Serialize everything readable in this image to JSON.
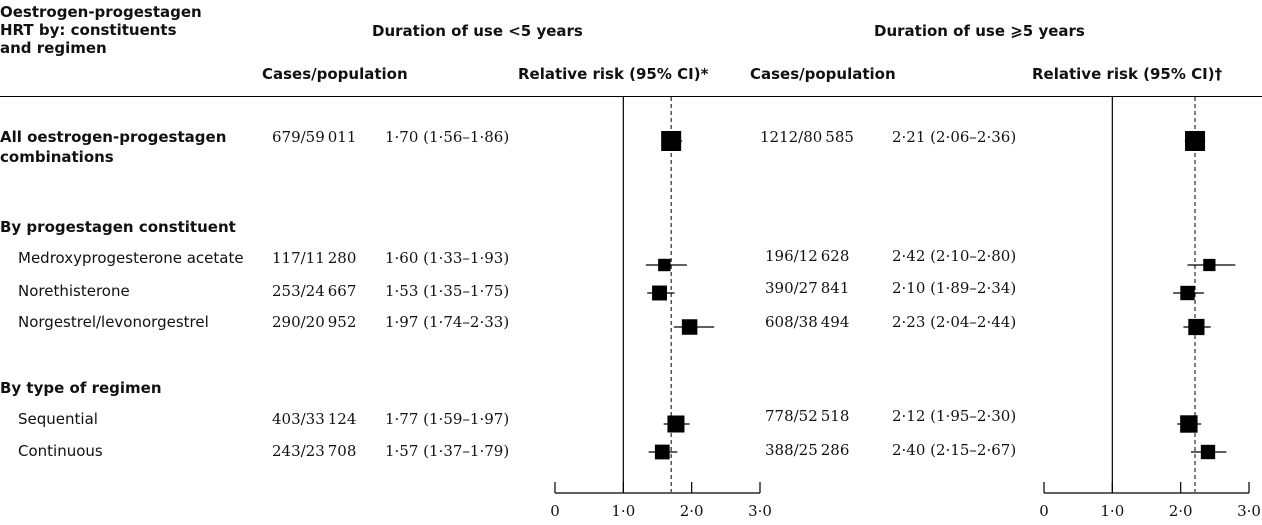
{
  "header": {
    "col_label_line1": "Oestrogen-progestagen",
    "col_label_line2": "HRT by: constituents",
    "col_label_line3": "and regimen",
    "group1_title": "Duration of use <5 years",
    "group2_title": "Duration of use ⩾5 years",
    "cases_label": "Cases/population",
    "rr_label1": "Relative risk (95% CI)*",
    "rr_label2": "Relative risk (95% CI)†"
  },
  "sections": {
    "progestagen": "By progestagen constituent",
    "regimen": "By type of regimen"
  },
  "rows": [
    {
      "label_line1": "All oestrogen-progestagen",
      "label_line2": "combinations",
      "bold": true,
      "cases1": "679/59 011",
      "rr1": "1·70 (1·56–1·86)",
      "cases2": "1212/80 585",
      "rr2": "2·21 (2·06–2·36)"
    },
    {
      "label_line1": "Medroxyprogesterone acetate",
      "label_line2": "",
      "bold": false,
      "cases1": "117/11 280",
      "rr1": "1·60 (1·33–1·93)",
      "cases2": "196/12 628",
      "rr2": "2·42 (2·10–2·80)"
    },
    {
      "label_line1": "Norethisterone",
      "label_line2": "",
      "bold": false,
      "cases1": "253/24 667",
      "rr1": "1·53 (1·35–1·75)",
      "cases2": "390/27 841",
      "rr2": "2·10 (1·89–2·34)"
    },
    {
      "label_line1": "Norgestrel/levonorgestrel",
      "label_line2": "",
      "bold": false,
      "cases1": "290/20 952",
      "rr1": "1·97 (1·74–2·33)",
      "cases2": "608/38 494",
      "rr2": "2·23 (2·04–2·44)"
    },
    {
      "label_line1": "Sequential",
      "label_line2": "",
      "bold": false,
      "cases1": "403/33 124",
      "rr1": "1·77 (1·59–1·97)",
      "cases2": "778/52 518",
      "rr2": "2·12 (1·95–2·30)"
    },
    {
      "label_line1": "Continuous",
      "label_line2": "",
      "bold": false,
      "cases1": "243/23 708",
      "rr1": "1·57 (1·37–1·79)",
      "cases2": "388/25 286",
      "rr2": "2·40 (2·15–2·67)"
    }
  ],
  "chart_data": [
    {
      "type": "forest",
      "title": "Duration of use <5 years",
      "xlim": [
        0,
        3
      ],
      "ticks": [
        0,
        1,
        2,
        3
      ],
      "tick_labels": [
        "0",
        "1·0",
        "2·0",
        "3·0"
      ],
      "reference_line": 1.0,
      "overall_dashed_line": 1.7,
      "marker_color": "#000000",
      "points": [
        {
          "label": "All oestrogen-progestagen combinations",
          "rr": 1.7,
          "lo": 1.56,
          "hi": 1.86,
          "cases": 679
        },
        {
          "label": "Medroxyprogesterone acetate",
          "rr": 1.6,
          "lo": 1.33,
          "hi": 1.93,
          "cases": 117
        },
        {
          "label": "Norethisterone",
          "rr": 1.53,
          "lo": 1.35,
          "hi": 1.75,
          "cases": 253
        },
        {
          "label": "Norgestrel/levonorgestrel",
          "rr": 1.97,
          "lo": 1.74,
          "hi": 2.33,
          "cases": 290
        },
        {
          "label": "Sequential",
          "rr": 1.77,
          "lo": 1.59,
          "hi": 1.97,
          "cases": 403
        },
        {
          "label": "Continuous",
          "rr": 1.57,
          "lo": 1.37,
          "hi": 1.79,
          "cases": 243
        }
      ]
    },
    {
      "type": "forest",
      "title": "Duration of use ⩾5 years",
      "xlim": [
        0,
        3
      ],
      "ticks": [
        0,
        1,
        2,
        3
      ],
      "tick_labels": [
        "0",
        "1·0",
        "2·0",
        "3·0"
      ],
      "reference_line": 1.0,
      "overall_dashed_line": 2.21,
      "marker_color": "#000000",
      "points": [
        {
          "label": "All oestrogen-progestagen combinations",
          "rr": 2.21,
          "lo": 2.06,
          "hi": 2.36,
          "cases": 1212
        },
        {
          "label": "Medroxyprogesterone acetate",
          "rr": 2.42,
          "lo": 2.1,
          "hi": 2.8,
          "cases": 196
        },
        {
          "label": "Norethisterone",
          "rr": 2.1,
          "lo": 1.89,
          "hi": 2.34,
          "cases": 390
        },
        {
          "label": "Norgestrel/levonorgestrel",
          "rr": 2.23,
          "lo": 2.04,
          "hi": 2.44,
          "cases": 608
        },
        {
          "label": "Sequential",
          "rr": 2.12,
          "lo": 1.95,
          "hi": 2.3,
          "cases": 778
        },
        {
          "label": "Continuous",
          "rr": 2.4,
          "lo": 2.15,
          "hi": 2.67,
          "cases": 388
        }
      ]
    }
  ]
}
